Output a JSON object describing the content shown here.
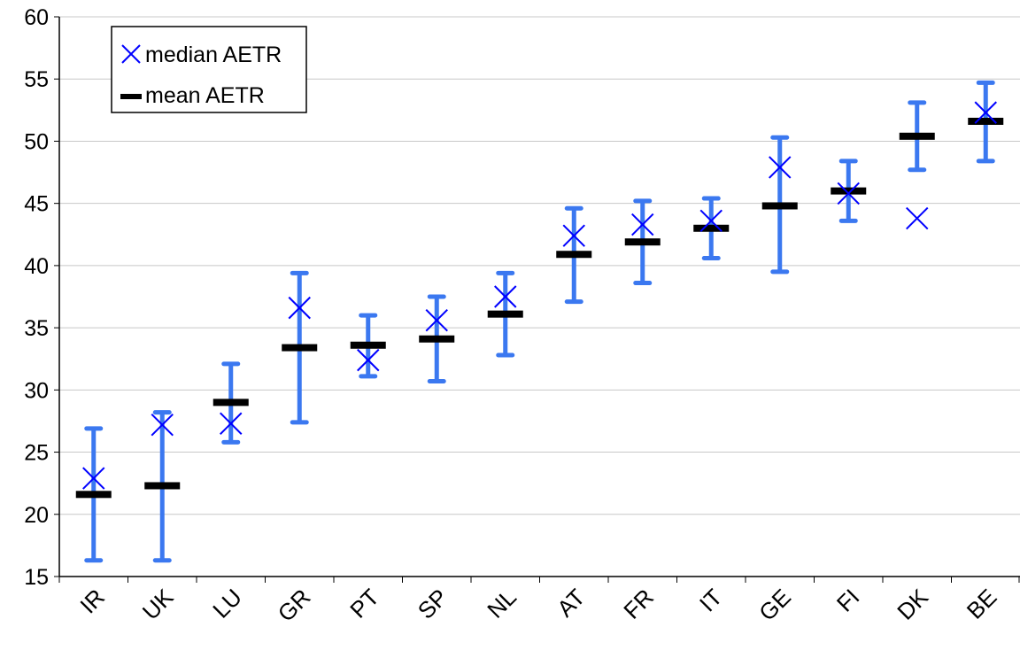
{
  "chart_data": {
    "type": "scatter",
    "title": "",
    "xlabel": "",
    "ylabel": "",
    "categories": [
      "IR",
      "UK",
      "LU",
      "GR",
      "PT",
      "SP",
      "NL",
      "AT",
      "FR",
      "IT",
      "GE",
      "FI",
      "DK",
      "BE"
    ],
    "ylim": [
      15,
      60
    ],
    "yticks": [
      15,
      20,
      25,
      30,
      35,
      40,
      45,
      50,
      55,
      60
    ],
    "grid": "horizontal",
    "legend_position": "top-left",
    "series": [
      {
        "name": "median AETR",
        "marker": "x",
        "color": "#0000ff",
        "values": [
          22.9,
          27.2,
          27.3,
          36.6,
          32.4,
          35.6,
          37.5,
          42.4,
          43.3,
          43.6,
          47.9,
          45.8,
          43.8,
          52.3
        ]
      },
      {
        "name": "mean AETR",
        "marker": "dash",
        "color": "#000000",
        "values": [
          21.6,
          22.3,
          29.0,
          33.4,
          33.6,
          34.1,
          36.1,
          40.9,
          41.9,
          43.0,
          44.8,
          46.0,
          50.4,
          51.6
        ]
      }
    ],
    "error_bars": {
      "color": "#3b78f0",
      "low": [
        16.3,
        16.3,
        25.8,
        27.4,
        31.1,
        30.7,
        32.8,
        37.1,
        38.6,
        40.6,
        39.5,
        43.6,
        47.7,
        48.4
      ],
      "high": [
        26.9,
        28.2,
        32.1,
        39.4,
        36.0,
        37.5,
        39.4,
        44.6,
        45.2,
        45.4,
        50.3,
        48.4,
        53.1,
        54.7
      ]
    }
  }
}
